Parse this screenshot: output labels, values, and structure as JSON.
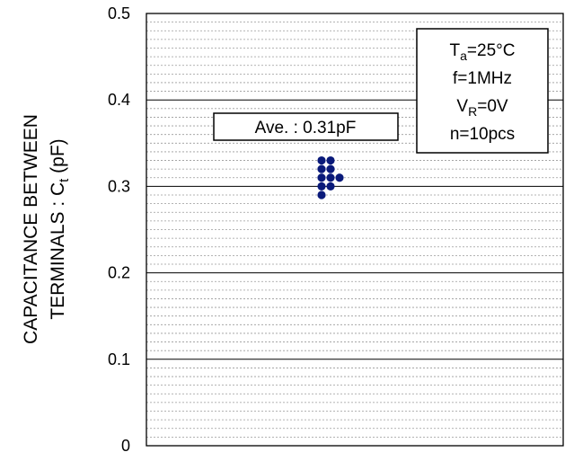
{
  "chart_data": {
    "type": "scatter",
    "ylabel_line1": "CAPACITANCE BETWEEN",
    "ylabel_line2_prefix": "TERMINALS : C",
    "ylabel_line2_sub": "t",
    "ylabel_line2_suffix": " (pF)",
    "ylim": [
      0,
      0.5
    ],
    "yticks": [
      "0",
      "0.1",
      "0.2",
      "0.3",
      "0.4",
      "0.5"
    ],
    "major_grid_step": 0.1,
    "minor_grid_step": 0.01,
    "grid": true,
    "marker_color": "#0a1a7a",
    "points": [
      {
        "y": 0.33,
        "col": 0
      },
      {
        "y": 0.33,
        "col": 1
      },
      {
        "y": 0.32,
        "col": 0
      },
      {
        "y": 0.32,
        "col": 1
      },
      {
        "y": 0.31,
        "col": 0
      },
      {
        "y": 0.31,
        "col": 1
      },
      {
        "y": 0.31,
        "col": 2
      },
      {
        "y": 0.3,
        "col": 0
      },
      {
        "y": 0.3,
        "col": 1
      },
      {
        "y": 0.29,
        "col": 0
      }
    ],
    "average_label": "Ave. : 0.31pF",
    "conditions": {
      "ta_main": "T",
      "ta_sub": "a",
      "ta_rest": "=25°C",
      "freq": "f=1MHz",
      "vr_main": "V",
      "vr_sub": "R",
      "vr_rest": "=0V",
      "count": "n=10pcs"
    }
  }
}
